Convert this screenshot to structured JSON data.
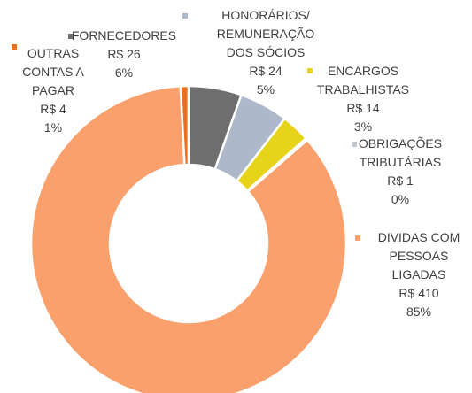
{
  "chart_data": {
    "type": "donut",
    "categories": [
      "OUTRAS CONTAS A PAGAR",
      "FORNECEDORES",
      "HONORÁRIOS/ REMUNERAÇÃO DOS SÓCIOS",
      "ENCARGOS TRABALHISTAS",
      "OBRIGAÇÕES TRIBUTÁRIAS",
      "DIVIDAS COM PESSOAS LIGADAS"
    ],
    "values": [
      4,
      26,
      24,
      14,
      1,
      410
    ],
    "value_labels": [
      "R$ 4",
      "R$ 26",
      "R$ 24",
      "R$ 14",
      "R$ 1",
      "R$ 410"
    ],
    "percent_labels": [
      "1%",
      "6%",
      "5%",
      "3%",
      "0%",
      "85%"
    ],
    "colors": [
      "#e8711f",
      "#6e6e6e",
      "#adb9ca",
      "#e6d31a",
      "#c3c8ce",
      "#f9a06d"
    ]
  }
}
